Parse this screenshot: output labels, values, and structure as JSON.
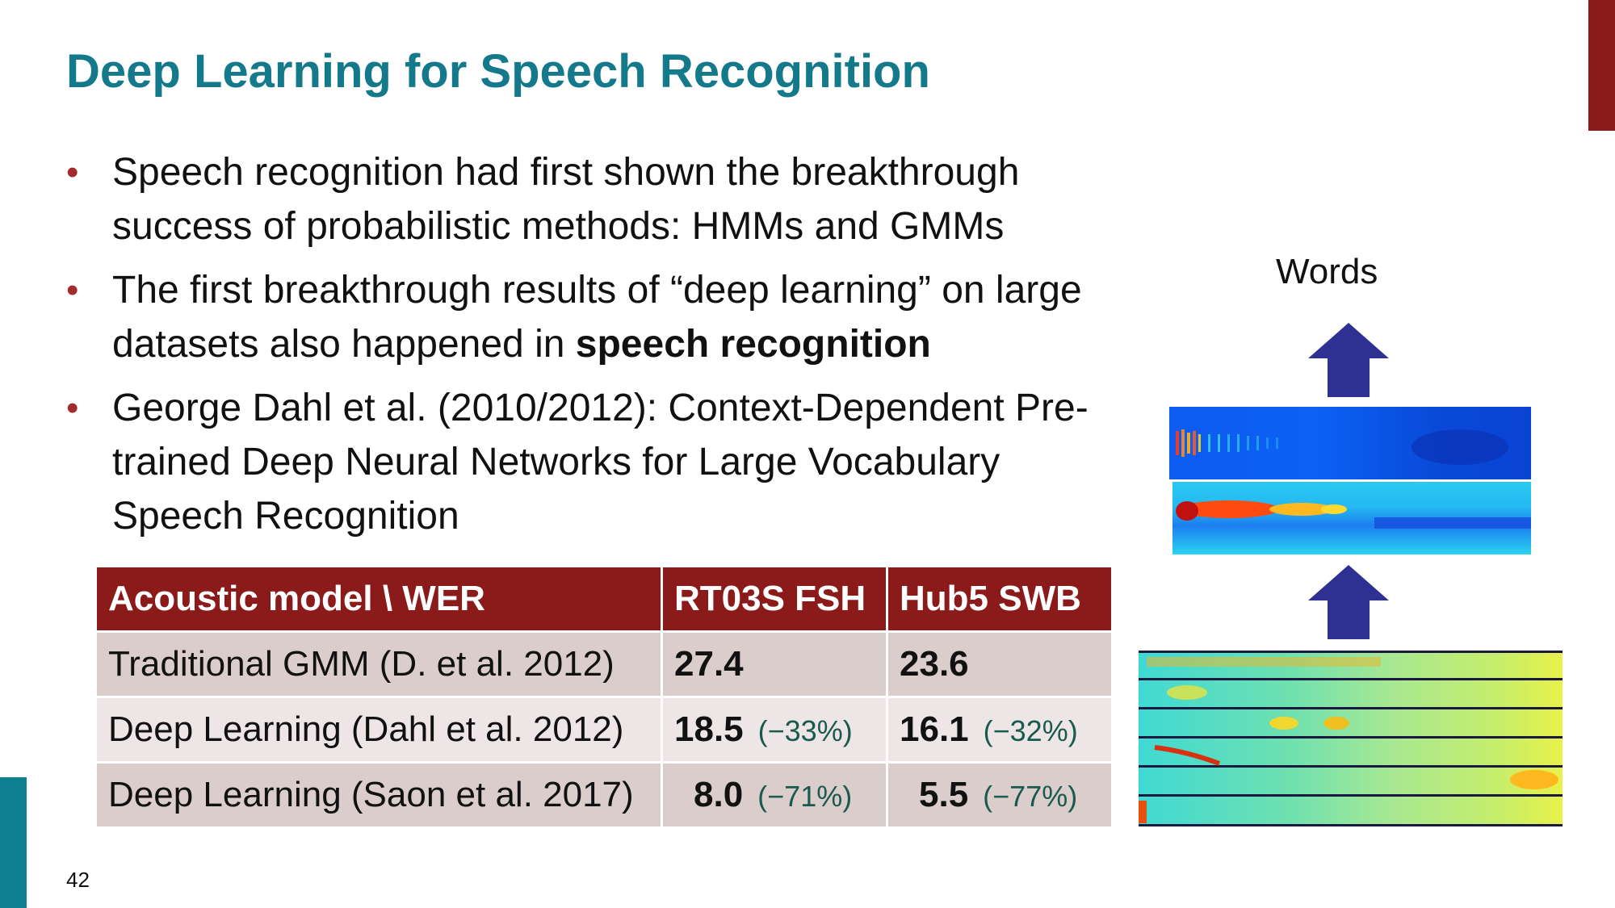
{
  "slide": {
    "title": "Deep Learning for Speech Recognition",
    "page_number": "42"
  },
  "colors": {
    "title": "#14798a",
    "accent_red": "#8b1a1a",
    "accent_teal": "#0e7f91",
    "bullet": "#a22b2b",
    "delta_text": "#1a5a4e",
    "arrow": "#2e3192"
  },
  "bullets": [
    {
      "marker": "•",
      "text": "Speech recognition had first shown the breakthrough success of probabilistic methods: HMMs and GMMs"
    },
    {
      "marker": "•",
      "text_before": "The first breakthrough results of “deep learning” on large datasets also happened in ",
      "text_bold": "speech recognition"
    },
    {
      "marker": "•",
      "text": "George Dahl et al. (2010/2012): Context-Dependent Pre-trained Deep Neural Networks for Large Vocabulary Speech Recognition"
    }
  ],
  "table": {
    "headers": [
      "Acoustic model \\ WER",
      "RT03S FSH",
      "Hub5 SWB"
    ],
    "rows": [
      {
        "model": "Traditional GMM (D. et al. 2012)",
        "fsh": "27.4",
        "fsh_delta": "",
        "swb": "23.6",
        "swb_delta": ""
      },
      {
        "model": "Deep Learning (Dahl et al. 2012)",
        "fsh": "18.5",
        "fsh_delta": "(−33%)",
        "swb": "16.1",
        "swb_delta": "(−32%)"
      },
      {
        "model": "Deep Learning (Saon et al. 2017)",
        "fsh": "8.0",
        "fsh_delta": "(−71%)",
        "swb": "5.5",
        "swb_delta": "(−77%)"
      }
    ]
  },
  "figure": {
    "output_label": "Words",
    "icons": [
      "up-arrow-icon",
      "up-arrow-icon"
    ]
  }
}
